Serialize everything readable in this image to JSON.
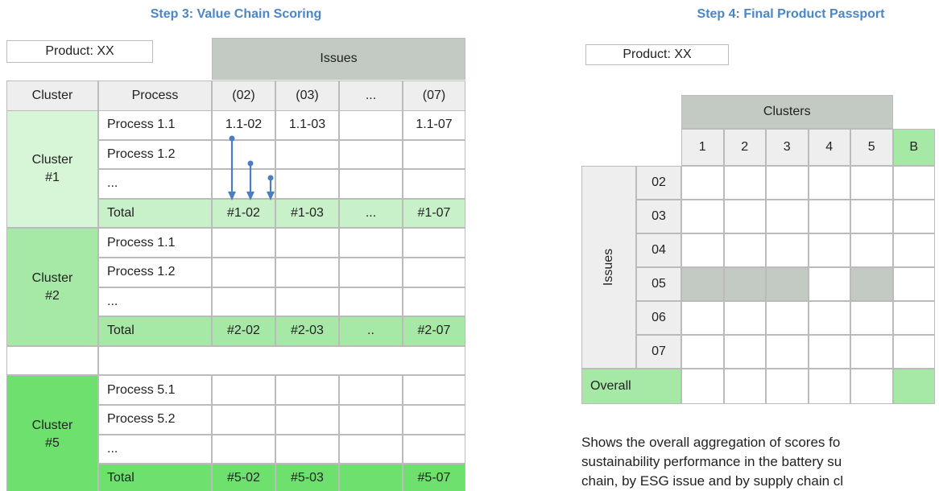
{
  "left": {
    "title": "Step 3: Value Chain Scoring",
    "product": "Product: XX",
    "issues_header": "Issues",
    "header": [
      "Cluster",
      "Process",
      "(02)",
      "(03)",
      "...",
      "(07)"
    ],
    "clusters": [
      {
        "label": [
          "Cluster",
          "#1"
        ],
        "rows": [
          [
            "Process 1.1",
            "1.1-02",
            "1.1-03",
            null,
            "1.1-07"
          ],
          [
            "Process 1.2",
            null,
            null,
            null,
            null
          ],
          [
            "...",
            null,
            null,
            null,
            null
          ],
          [
            "Total",
            "#1-02",
            "#1-03",
            "...",
            "#1-07"
          ]
        ]
      },
      {
        "label": [
          "Cluster",
          "#2"
        ],
        "rows": [
          [
            "Process 1.1",
            null,
            null,
            null,
            null
          ],
          [
            "Process 1.2",
            null,
            null,
            null,
            null
          ],
          [
            "...",
            null,
            null,
            null,
            null
          ],
          [
            "Total",
            "#2-02",
            "#2-03",
            "..",
            "#2-07"
          ]
        ]
      },
      {
        "label": [
          "Cluster",
          "#5"
        ],
        "rows": [
          [
            "Process 5.1",
            null,
            null,
            null,
            null
          ],
          [
            "Process 5.2",
            null,
            null,
            null,
            null
          ],
          [
            "...",
            null,
            null,
            null,
            null
          ],
          [
            "Total",
            "#5-02",
            "#5-03",
            null,
            "#5-07"
          ]
        ]
      }
    ]
  },
  "right": {
    "title": "Step 4: Final Product Passport",
    "product": "Product: XX",
    "clusters_header": "Clusters",
    "columns": [
      "1",
      "2",
      "3",
      "4",
      "5",
      "B"
    ],
    "issues_label": "Issues",
    "issues": [
      "02",
      "03",
      "04",
      "05",
      "06",
      "07"
    ],
    "overall": "Overall",
    "caption": [
      "Shows the overall aggregation of scores fo",
      "sustainability performance in the battery su",
      "chain, by ESG issue and by supply chain cl"
    ]
  }
}
